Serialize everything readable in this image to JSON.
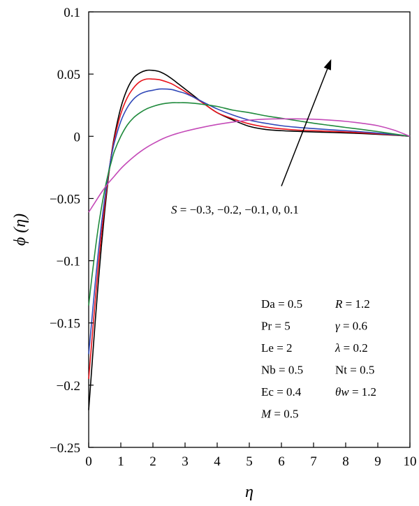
{
  "chart_data": {
    "type": "line",
    "title": "",
    "xlabel": "η",
    "ylabel": "ϕ (η)",
    "xlim": [
      0,
      10
    ],
    "ylim": [
      -0.25,
      0.1
    ],
    "xticks": [
      0,
      1,
      2,
      3,
      4,
      5,
      6,
      7,
      8,
      9,
      10
    ],
    "xtick_labels": [
      "0",
      "1",
      "2",
      "3",
      "4",
      "5",
      "6",
      "7",
      "8",
      "9",
      "10"
    ],
    "yticks": [
      -0.25,
      -0.2,
      -0.15,
      -0.1,
      -0.05,
      0,
      0.05,
      0.1
    ],
    "ytick_labels": [
      "−0.25",
      "−0.2",
      "−0.15",
      "−0.1",
      "−0.05",
      "0",
      "0.05",
      "0.1"
    ],
    "grid": false,
    "annotation": "S = −0.3, −0.2, −0.1, 0, 0.1",
    "arrow": {
      "from": [
        6.0,
        -0.04
      ],
      "to": [
        7.55,
        0.062
      ]
    },
    "parameters": [
      [
        "Da = 0.5",
        "R = 1.2"
      ],
      [
        "Pr = 5",
        "γ = 0.6"
      ],
      [
        "Le = 2",
        "λ = 0.2"
      ],
      [
        "Nb = 0.5",
        "Nt = 0.5"
      ],
      [
        "Ec = 0.4",
        "θw = 1.2"
      ],
      [
        "M = 0.5",
        ""
      ]
    ],
    "series": [
      {
        "color": "#000000",
        "x": [
          0,
          0.1,
          0.2,
          0.3,
          0.4,
          0.5,
          0.6,
          0.7,
          0.8,
          1.0,
          1.2,
          1.4,
          1.6,
          1.8,
          2.0,
          2.2,
          2.4,
          2.6,
          2.8,
          3.0,
          3.3,
          3.6,
          4.0,
          4.5,
          5.0,
          5.5,
          6.0,
          6.5,
          7.0,
          7.5,
          8.0,
          8.5,
          9.0,
          9.5,
          10.0
        ],
        "y": [
          -0.22,
          -0.185,
          -0.15,
          -0.117,
          -0.087,
          -0.06,
          -0.036,
          -0.016,
          0.0,
          0.023,
          0.038,
          0.047,
          0.051,
          0.053,
          0.053,
          0.052,
          0.0495,
          0.046,
          0.042,
          0.038,
          0.032,
          0.026,
          0.019,
          0.013,
          0.008,
          0.0055,
          0.0045,
          0.004,
          0.0035,
          0.0031,
          0.0027,
          0.0022,
          0.0016,
          0.0009,
          0.0
        ]
      },
      {
        "color": "#e8121a",
        "x": [
          0,
          0.1,
          0.2,
          0.3,
          0.4,
          0.5,
          0.6,
          0.7,
          0.8,
          1.0,
          1.2,
          1.4,
          1.6,
          1.8,
          2.0,
          2.2,
          2.4,
          2.6,
          2.8,
          3.0,
          3.3,
          3.6,
          4.0,
          4.5,
          5.0,
          5.5,
          6.0,
          6.5,
          7.0,
          7.5,
          8.0,
          8.5,
          9.0,
          9.5,
          10.0
        ],
        "y": [
          -0.195,
          -0.164,
          -0.133,
          -0.104,
          -0.078,
          -0.055,
          -0.034,
          -0.016,
          -0.002,
          0.018,
          0.031,
          0.039,
          0.044,
          0.046,
          0.046,
          0.0455,
          0.044,
          0.042,
          0.039,
          0.036,
          0.031,
          0.026,
          0.019,
          0.014,
          0.01,
          0.0075,
          0.006,
          0.005,
          0.0045,
          0.004,
          0.0035,
          0.0028,
          0.002,
          0.0011,
          0.0
        ]
      },
      {
        "color": "#3048b8",
        "x": [
          0,
          0.1,
          0.2,
          0.3,
          0.4,
          0.5,
          0.6,
          0.7,
          0.8,
          1.0,
          1.2,
          1.4,
          1.6,
          1.8,
          2.0,
          2.2,
          2.4,
          2.6,
          2.8,
          3.0,
          3.3,
          3.6,
          4.0,
          4.5,
          5.0,
          5.5,
          6.0,
          6.5,
          7.0,
          7.5,
          8.0,
          8.5,
          9.0,
          9.5,
          10.0
        ],
        "y": [
          -0.175,
          -0.147,
          -0.119,
          -0.093,
          -0.07,
          -0.05,
          -0.032,
          -0.017,
          -0.005,
          0.012,
          0.023,
          0.03,
          0.034,
          0.036,
          0.037,
          0.038,
          0.038,
          0.0375,
          0.036,
          0.0345,
          0.031,
          0.027,
          0.022,
          0.017,
          0.013,
          0.0105,
          0.0085,
          0.0072,
          0.0062,
          0.0053,
          0.0045,
          0.0036,
          0.0026,
          0.0014,
          0.0
        ]
      },
      {
        "color": "#1f8a3c",
        "x": [
          0,
          0.1,
          0.2,
          0.3,
          0.4,
          0.5,
          0.6,
          0.7,
          0.8,
          1.0,
          1.2,
          1.4,
          1.6,
          1.8,
          2.0,
          2.2,
          2.4,
          2.6,
          2.8,
          3.0,
          3.3,
          3.6,
          4.0,
          4.5,
          5.0,
          5.5,
          6.0,
          6.5,
          7.0,
          7.5,
          8.0,
          8.5,
          9.0,
          9.5,
          10.0
        ],
        "y": [
          -0.136,
          -0.113,
          -0.092,
          -0.073,
          -0.057,
          -0.043,
          -0.031,
          -0.021,
          -0.012,
          0.0,
          0.009,
          0.015,
          0.019,
          0.022,
          0.024,
          0.0255,
          0.0265,
          0.027,
          0.027,
          0.027,
          0.0265,
          0.0255,
          0.024,
          0.021,
          0.019,
          0.0165,
          0.0145,
          0.0125,
          0.0105,
          0.0088,
          0.0071,
          0.0055,
          0.0038,
          0.0019,
          0.0
        ]
      },
      {
        "color": "#c44ab8",
        "x": [
          0,
          0.2,
          0.4,
          0.6,
          0.8,
          1.0,
          1.2,
          1.4,
          1.6,
          1.8,
          2.0,
          2.3,
          2.6,
          3.0,
          3.5,
          4.0,
          4.5,
          5.0,
          5.5,
          6.0,
          6.5,
          7.0,
          7.5,
          8.0,
          8.5,
          9.0,
          9.5,
          10.0
        ],
        "y": [
          -0.061,
          -0.053,
          -0.045,
          -0.038,
          -0.032,
          -0.026,
          -0.021,
          -0.0165,
          -0.0125,
          -0.009,
          -0.006,
          -0.002,
          0.001,
          0.004,
          0.007,
          0.0095,
          0.0115,
          0.013,
          0.0138,
          0.014,
          0.014,
          0.0137,
          0.013,
          0.012,
          0.0105,
          0.0085,
          0.005,
          0.0
        ]
      }
    ]
  }
}
